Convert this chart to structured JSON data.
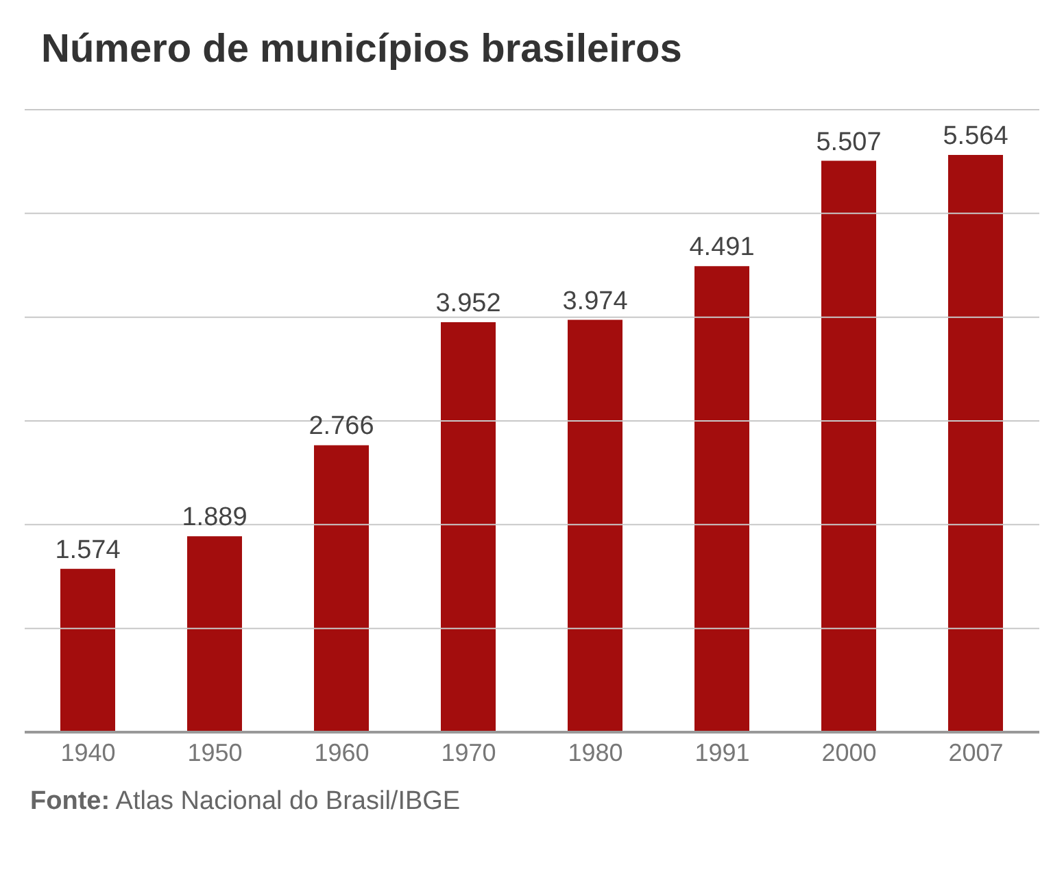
{
  "chart_data": {
    "type": "bar",
    "title": "Número de municípios brasileiros",
    "categories": [
      "1940",
      "1950",
      "1960",
      "1970",
      "1980",
      "1991",
      "2000",
      "2007"
    ],
    "values": [
      1574,
      1889,
      2766,
      3952,
      3974,
      4491,
      5507,
      5564
    ],
    "value_labels": [
      "1.574",
      "1.889",
      "2.766",
      "3.952",
      "3.974",
      "4.491",
      "5.507",
      "5.564"
    ],
    "color": "#a30d0d",
    "ylim": [
      0,
      6000
    ],
    "yticks": [
      {
        "value": 0,
        "label": null
      },
      {
        "value": 1000,
        "label": null
      },
      {
        "value": 2000,
        "label": null
      },
      {
        "value": 3000,
        "label": null
      },
      {
        "value": 4000,
        "label": null
      },
      {
        "value": 5000,
        "label": null
      },
      {
        "value": 6000,
        "label": null
      }
    ],
    "grid": "y",
    "tick_labels": "x",
    "annotations": [
      "Fonte: Atlas Nacional do Brasil/IBGE"
    ]
  }
}
